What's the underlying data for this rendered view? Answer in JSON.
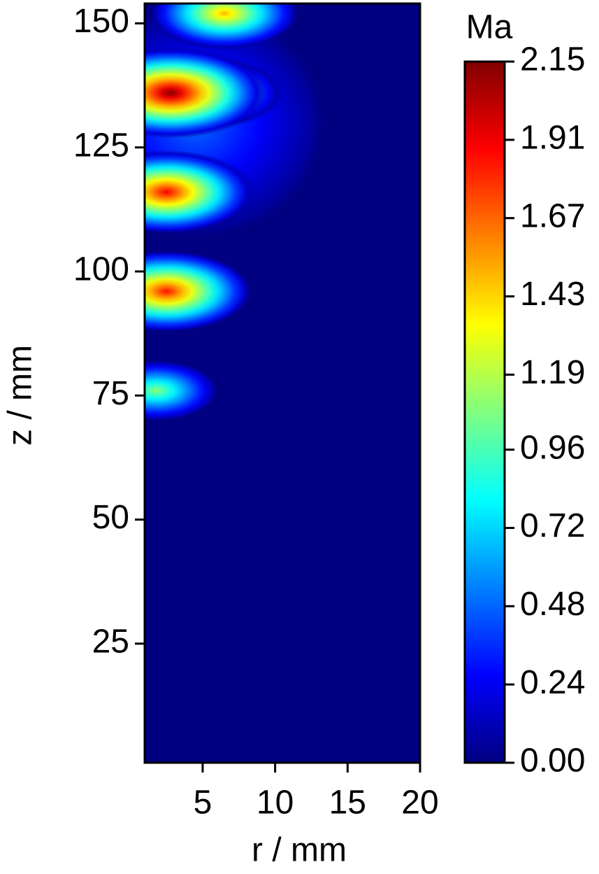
{
  "chart_data": {
    "type": "heatmap",
    "xlabel": "r / mm",
    "ylabel": "z / mm",
    "colorbar_label": "Ma",
    "xlim": [
      1,
      20
    ],
    "xticks": [
      5,
      10,
      15,
      20
    ],
    "ylim": [
      1,
      154
    ],
    "yticks": [
      25,
      50,
      75,
      100,
      125,
      150
    ],
    "clim": [
      0,
      2.15
    ],
    "cticks": [
      {
        "value": 0,
        "label": "0.00"
      },
      {
        "value": 0.24,
        "label": "0.24"
      },
      {
        "value": 0.48,
        "label": "0.48"
      },
      {
        "value": 0.72,
        "label": "0.72"
      },
      {
        "value": 0.96,
        "label": "0.96"
      },
      {
        "value": 1.19,
        "label": "1.19"
      },
      {
        "value": 1.43,
        "label": "1.43"
      },
      {
        "value": 1.67,
        "label": "1.67"
      },
      {
        "value": 1.91,
        "label": "1.91"
      },
      {
        "value": 2.15,
        "label": "2.15"
      }
    ],
    "colormap": "jet",
    "hotspots": [
      {
        "r": 4.5,
        "z": 130,
        "value": 0.5
      },
      {
        "r": 6.5,
        "z": 152,
        "value": 1.5
      },
      {
        "r": 5.5,
        "z": 136,
        "value": 1.4
      },
      {
        "r": 2.8,
        "z": 136,
        "value": 2.15
      },
      {
        "r": 3.5,
        "z": 116,
        "value": 1.3
      },
      {
        "r": 2.5,
        "z": 116,
        "value": 1.9
      },
      {
        "r": 3.5,
        "z": 96,
        "value": 1.3
      },
      {
        "r": 2.5,
        "z": 96,
        "value": 1.85
      },
      {
        "r": 1.8,
        "z": 76,
        "value": 1.1
      }
    ]
  }
}
